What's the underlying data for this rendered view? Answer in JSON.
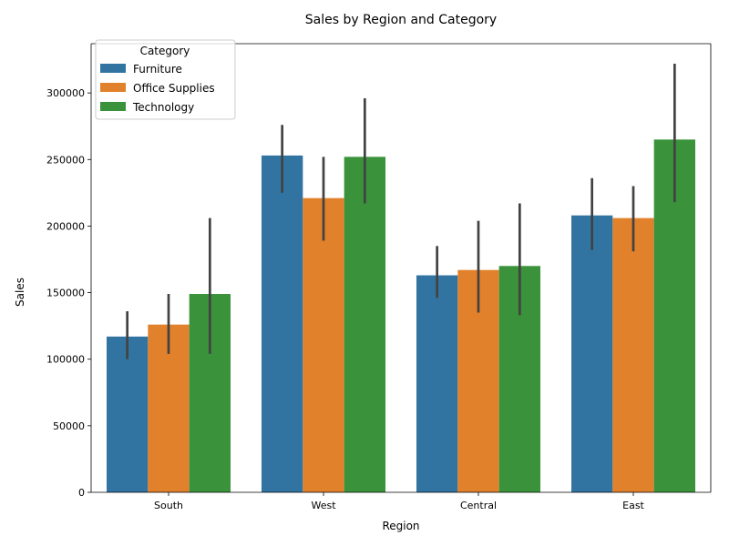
{
  "chart_data": {
    "type": "bar",
    "title": "Sales by Region and Category",
    "xlabel": "Region",
    "ylabel": "Sales",
    "categories": [
      "South",
      "West",
      "Central",
      "East"
    ],
    "ylim": [
      0,
      337000
    ],
    "yticks": [
      0,
      50000,
      100000,
      150000,
      200000,
      250000,
      300000
    ],
    "grid": false,
    "legend": {
      "title": "Category",
      "placement": "top-left"
    },
    "series": [
      {
        "name": "Furniture",
        "color": "#3274a1",
        "values": [
          117000,
          253000,
          163000,
          208000
        ],
        "error_low": [
          100000,
          225000,
          146000,
          182000
        ],
        "error_high": [
          136000,
          276000,
          185000,
          236000
        ]
      },
      {
        "name": "Office Supplies",
        "color": "#e1812c",
        "values": [
          126000,
          221000,
          167000,
          206000
        ],
        "error_low": [
          104000,
          189000,
          135000,
          181000
        ],
        "error_high": [
          149000,
          252000,
          204000,
          230000
        ]
      },
      {
        "name": "Technology",
        "color": "#3a923a",
        "values": [
          149000,
          252000,
          170000,
          265000
        ],
        "error_low": [
          104000,
          217000,
          133000,
          218000
        ],
        "error_high": [
          206000,
          296000,
          217000,
          322000
        ]
      }
    ]
  }
}
